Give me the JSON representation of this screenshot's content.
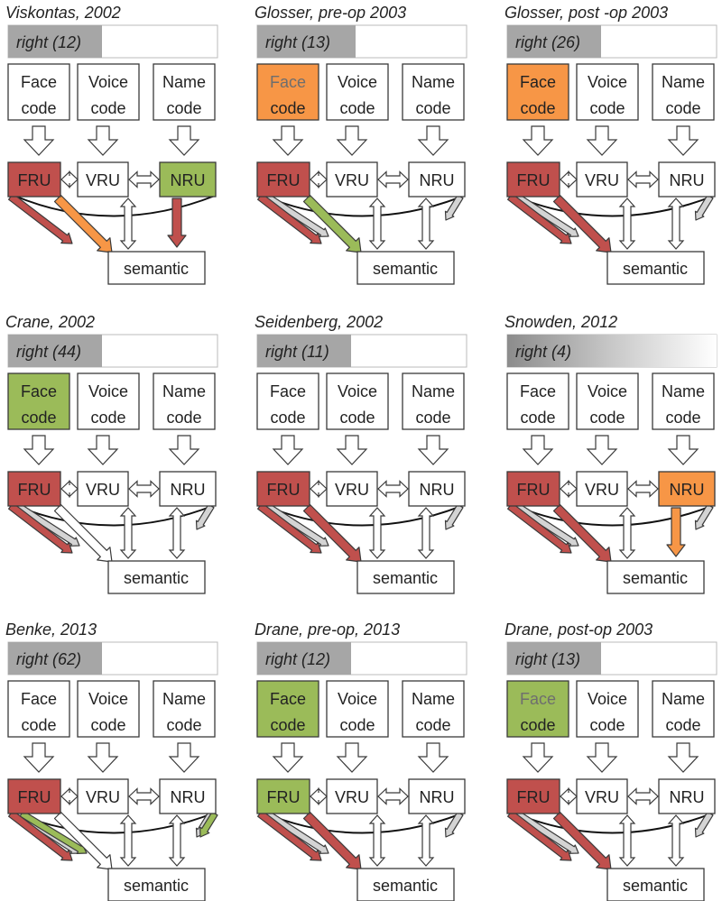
{
  "colors": {
    "red": "#c0504d",
    "orange": "#f79646",
    "green": "#9bbb59",
    "white": "#ffffff",
    "bar_gray": "#a6a6a6",
    "stroke": "#3a3a3a"
  },
  "labels": {
    "face": [
      "Face",
      "code"
    ],
    "voice": [
      "Voice",
      "code"
    ],
    "name": [
      "Name",
      "code"
    ],
    "fru": "FRU",
    "vru": "VRU",
    "nru": "NRU",
    "semantic": "semantic"
  },
  "panels": [
    {
      "title": "Viskontas, 2002",
      "bar": "right (12)",
      "bar_fill": 0.45,
      "bar_gradient": false,
      "face": "white",
      "face_text": "normal",
      "fru": "red",
      "vru": "white",
      "nru": "green",
      "diag": "orange",
      "nru_sem": "red",
      "gray_tails": false
    },
    {
      "title": "Glosser, pre-op 2003",
      "bar": "right (13)",
      "bar_fill": 0.47,
      "bar_gradient": false,
      "face": "orange",
      "face_text": "faded",
      "fru": "red",
      "vru": "white",
      "nru": "white",
      "diag": "green",
      "nru_sem": "white",
      "gray_tails": true
    },
    {
      "title": "Glosser, post -op 2003",
      "bar": "right (26)",
      "bar_fill": 0.45,
      "bar_gradient": false,
      "face": "orange",
      "face_text": "normal",
      "fru": "red",
      "vru": "white",
      "nru": "white",
      "diag": "red",
      "nru_sem": "white",
      "gray_tails": true
    },
    {
      "title": "Crane, 2002",
      "bar": "right (44)",
      "bar_fill": 0.45,
      "bar_gradient": false,
      "face": "green",
      "face_text": "normal",
      "fru": "red",
      "vru": "white",
      "nru": "white",
      "diag": "white",
      "nru_sem": "white",
      "gray_tails": true
    },
    {
      "title": "Seidenberg, 2002",
      "bar": "right (11)",
      "bar_fill": 0.45,
      "bar_gradient": false,
      "face": "white",
      "face_text": "normal",
      "fru": "red",
      "vru": "white",
      "nru": "white",
      "diag": "red",
      "nru_sem": "white",
      "gray_tails": true
    },
    {
      "title": "Snowden, 2012",
      "bar": "right (4)",
      "bar_fill": 0.45,
      "bar_gradient": true,
      "face": "white",
      "face_text": "normal",
      "fru": "red",
      "vru": "white",
      "nru": "orange",
      "diag": "red",
      "nru_sem": "orange",
      "gray_tails": true
    },
    {
      "title": "Benke, 2013",
      "bar": "right (62)",
      "bar_fill": 0.45,
      "bar_gradient": false,
      "face": "white",
      "face_text": "normal",
      "fru": "red",
      "vru": "white",
      "nru": "white",
      "diag": "white",
      "nru_sem": "white",
      "gray_tails": true,
      "fru_tail": "green",
      "nru_tail": "green"
    },
    {
      "title": "Drane, pre-op, 2013",
      "bar": "right (12)",
      "bar_fill": 0.45,
      "bar_gradient": false,
      "face": "green",
      "face_text": "normal",
      "fru": "green",
      "vru": "white",
      "nru": "white",
      "diag": "red",
      "nru_sem": "white",
      "gray_tails": true
    },
    {
      "title": "Drane, post-op 2003",
      "bar": "right (13)",
      "bar_fill": 0.45,
      "bar_gradient": false,
      "face": "green",
      "face_text": "faded",
      "fru": "red",
      "vru": "white",
      "nru": "white",
      "diag": "red",
      "nru_sem": "white",
      "gray_tails": true
    }
  ]
}
